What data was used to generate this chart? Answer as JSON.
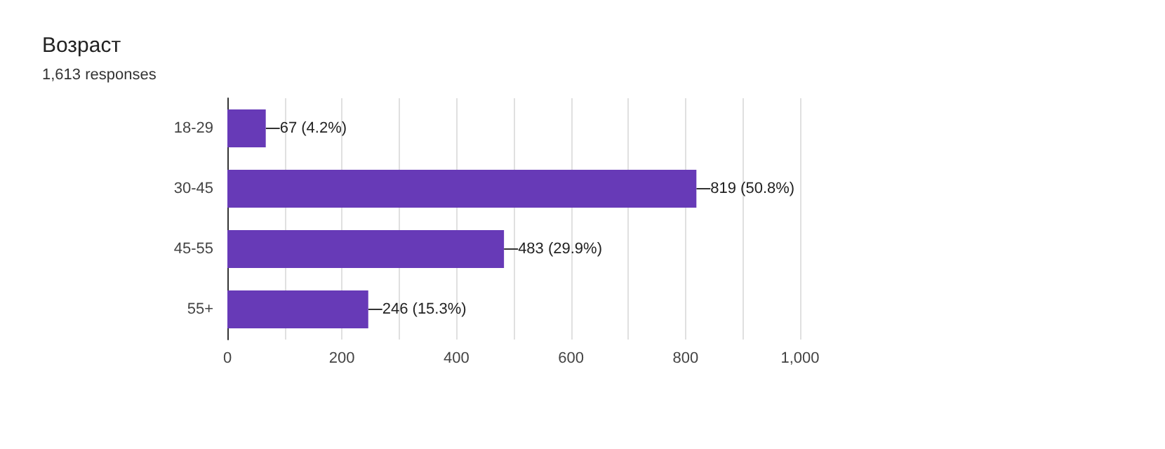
{
  "chart_data": {
    "type": "bar",
    "orientation": "horizontal",
    "title": "Возраст",
    "subtitle": "1,613 responses",
    "categories": [
      "18-29",
      "30-45",
      "45-55",
      "55+"
    ],
    "values": [
      67,
      819,
      483,
      246
    ],
    "value_labels": [
      "67 (4.2%)",
      "819 (50.8%)",
      "483 (29.9%)",
      "246 (15.3%)"
    ],
    "color": "#673ab7",
    "xlim": [
      0,
      1000
    ],
    "xticks": [
      0,
      {
        "value": 100,
        "label": null
      },
      200,
      {
        "value": 300,
        "label": null
      },
      400,
      {
        "value": 500,
        "label": null
      },
      600,
      {
        "value": 700,
        "label": null
      },
      800,
      {
        "value": 900,
        "label": null
      },
      {
        "value": 1000,
        "label": "1,000"
      }
    ],
    "grid": "x"
  }
}
